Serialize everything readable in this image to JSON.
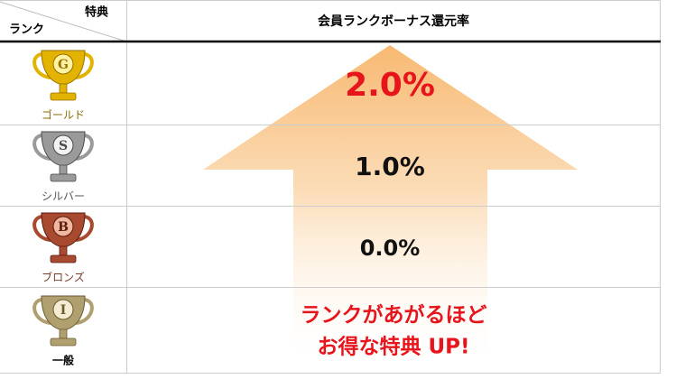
{
  "header": {
    "corner_top": "特典",
    "corner_bottom": "ランク",
    "title": "会員ランクボーナス還元率"
  },
  "rows": [
    {
      "badge": "G",
      "rank": "ゴールド",
      "rate": "2.0%"
    },
    {
      "badge": "S",
      "rank": "シルバー",
      "rate": "1.0%"
    },
    {
      "badge": "B",
      "rank": "ブロンズ",
      "rate": "0.0%"
    },
    {
      "badge": "I",
      "rank": "一般"
    }
  ],
  "message": [
    "ランクがあがるほど",
    "お得な特典 UP!"
  ]
}
